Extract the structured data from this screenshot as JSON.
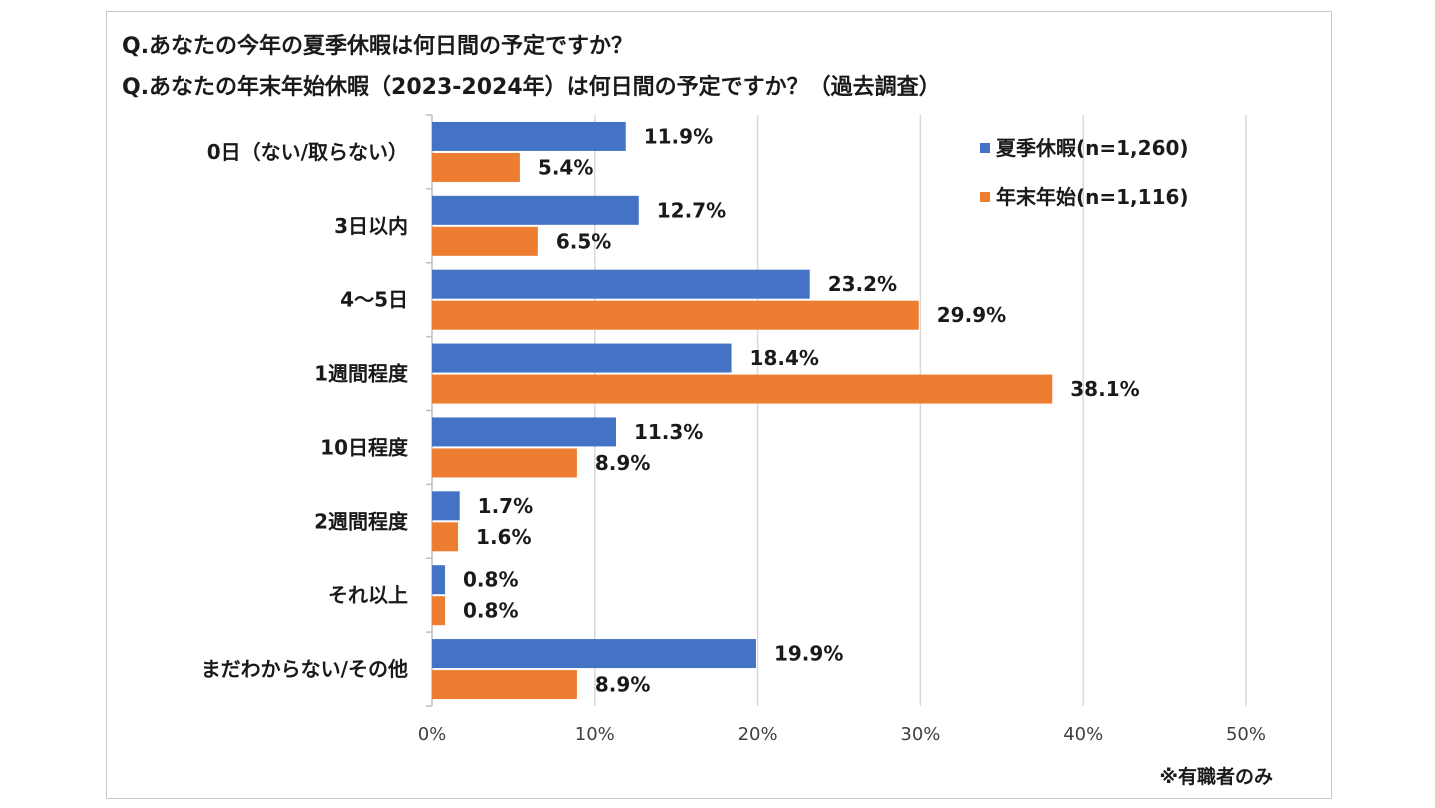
{
  "chart_data": {
    "type": "bar",
    "orientation": "horizontal",
    "title_lines": [
      "Q.あなたの今年の夏季休暇は何日間の予定ですか？",
      "Q.あなたの年末年始休暇（2023-2024年）は何日間の予定ですか？（過去調査）"
    ],
    "categories": [
      "0日（ない/取らない）",
      "3日以内",
      "4～5日",
      "1週間程度",
      "10日程度",
      "2週間程度",
      "それ以上",
      "まだわからない/その他"
    ],
    "series": [
      {
        "name": "夏季休暇(n=1,260)",
        "color": "#4472C4",
        "values": [
          11.9,
          12.7,
          23.2,
          18.4,
          11.3,
          1.7,
          0.8,
          19.9
        ]
      },
      {
        "name": "年末年始(n=1,116)",
        "color": "#ED7D31",
        "values": [
          5.4,
          6.5,
          29.9,
          38.1,
          8.9,
          1.6,
          0.8,
          8.9
        ]
      }
    ],
    "value_suffix": "%",
    "xlim": [
      0,
      50
    ],
    "xticks": [
      0,
      10,
      20,
      30,
      40,
      50
    ],
    "xtick_labels": [
      "0%",
      "10%",
      "20%",
      "30%",
      "40%",
      "50%"
    ],
    "grid": true,
    "legend_position": "top-right",
    "note": "※有職者のみ"
  }
}
